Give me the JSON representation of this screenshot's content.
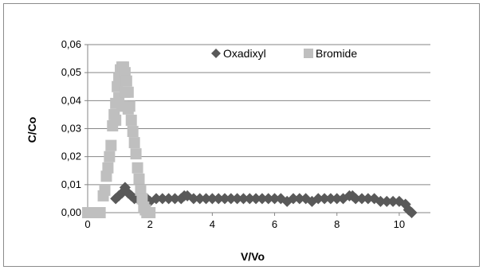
{
  "chart_data": {
    "type": "scatter",
    "title": "",
    "xlabel": "V/Vo",
    "ylabel": "C/Co",
    "xlim": [
      0,
      11
    ],
    "ylim": [
      0,
      0.06
    ],
    "x_ticks": [
      0,
      2,
      4,
      6,
      8,
      10
    ],
    "x_tick_labels": [
      "0",
      "2",
      "4",
      "6",
      "8",
      "10"
    ],
    "y_ticks": [
      0,
      0.01,
      0.02,
      0.03,
      0.04,
      0.05,
      0.06
    ],
    "y_tick_labels": [
      "0,00",
      "0,01",
      "0,02",
      "0,03",
      "0,04",
      "0,05",
      "0,06"
    ],
    "grid": "horizontal",
    "legend_position": "top-right",
    "series": [
      {
        "name": "Oxadixyl",
        "marker": "diamond",
        "color": "#595959",
        "points": [
          [
            0.9,
            0.005
          ],
          [
            1.0,
            0.006
          ],
          [
            1.1,
            0.007
          ],
          [
            1.2,
            0.009
          ],
          [
            1.3,
            0.007
          ],
          [
            1.4,
            0.006
          ],
          [
            1.5,
            0.005
          ],
          [
            1.6,
            0.005
          ],
          [
            1.7,
            0.004
          ],
          [
            1.8,
            0.005
          ],
          [
            1.9,
            0.005
          ],
          [
            2.0,
            0.004
          ],
          [
            2.2,
            0.005
          ],
          [
            2.4,
            0.005
          ],
          [
            2.6,
            0.005
          ],
          [
            2.8,
            0.005
          ],
          [
            3.0,
            0.005
          ],
          [
            3.1,
            0.006
          ],
          [
            3.2,
            0.006
          ],
          [
            3.4,
            0.005
          ],
          [
            3.6,
            0.005
          ],
          [
            3.8,
            0.005
          ],
          [
            4.0,
            0.005
          ],
          [
            4.2,
            0.005
          ],
          [
            4.4,
            0.005
          ],
          [
            4.6,
            0.005
          ],
          [
            4.8,
            0.005
          ],
          [
            5.0,
            0.005
          ],
          [
            5.2,
            0.005
          ],
          [
            5.4,
            0.005
          ],
          [
            5.6,
            0.005
          ],
          [
            5.8,
            0.005
          ],
          [
            6.0,
            0.005
          ],
          [
            6.2,
            0.005
          ],
          [
            6.4,
            0.004
          ],
          [
            6.6,
            0.005
          ],
          [
            6.8,
            0.005
          ],
          [
            7.0,
            0.005
          ],
          [
            7.2,
            0.004
          ],
          [
            7.4,
            0.005
          ],
          [
            7.6,
            0.005
          ],
          [
            7.8,
            0.005
          ],
          [
            8.0,
            0.005
          ],
          [
            8.2,
            0.005
          ],
          [
            8.4,
            0.006
          ],
          [
            8.5,
            0.006
          ],
          [
            8.6,
            0.005
          ],
          [
            8.8,
            0.005
          ],
          [
            9.0,
            0.005
          ],
          [
            9.2,
            0.005
          ],
          [
            9.4,
            0.004
          ],
          [
            9.6,
            0.004
          ],
          [
            9.8,
            0.004
          ],
          [
            10.0,
            0.004
          ],
          [
            10.2,
            0.003
          ],
          [
            10.3,
            0.001
          ],
          [
            10.4,
            0.0
          ]
        ]
      },
      {
        "name": "Bromide",
        "marker": "square",
        "color": "#bfbfbf",
        "points": [
          [
            0.0,
            0.0
          ],
          [
            0.1,
            0.0
          ],
          [
            0.2,
            0.0
          ],
          [
            0.3,
            0.0
          ],
          [
            0.4,
            0.0
          ],
          [
            0.5,
            0.006
          ],
          [
            0.55,
            0.008
          ],
          [
            0.6,
            0.013
          ],
          [
            0.65,
            0.016
          ],
          [
            0.7,
            0.02
          ],
          [
            0.75,
            0.024
          ],
          [
            0.8,
            0.031
          ],
          [
            0.85,
            0.035
          ],
          [
            0.9,
            0.039
          ],
          [
            0.95,
            0.045
          ],
          [
            1.0,
            0.048
          ],
          [
            1.05,
            0.051
          ],
          [
            1.1,
            0.052
          ],
          [
            1.15,
            0.052
          ],
          [
            1.2,
            0.05
          ],
          [
            1.25,
            0.047
          ],
          [
            1.3,
            0.043
          ],
          [
            1.35,
            0.038
          ],
          [
            1.4,
            0.033
          ],
          [
            1.45,
            0.029
          ],
          [
            1.5,
            0.025
          ],
          [
            1.55,
            0.021
          ],
          [
            1.6,
            0.016
          ],
          [
            1.65,
            0.012
          ],
          [
            1.7,
            0.008
          ],
          [
            1.75,
            0.005
          ],
          [
            1.8,
            0.002
          ],
          [
            1.85,
            0.001
          ],
          [
            1.9,
            0.0
          ],
          [
            2.0,
            0.0
          ],
          [
            1.0,
            0.041
          ],
          [
            1.1,
            0.038
          ],
          [
            1.2,
            0.043
          ],
          [
            1.3,
            0.037
          ],
          [
            0.9,
            0.033
          ]
        ]
      }
    ]
  }
}
